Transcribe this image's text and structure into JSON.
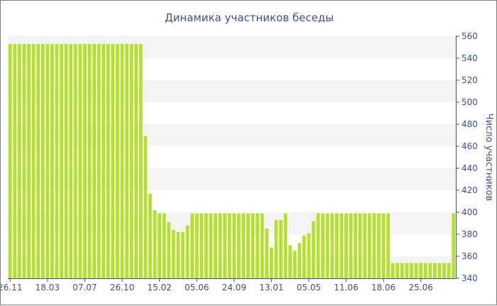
{
  "chart_data": {
    "type": "bar",
    "title": "Динамика участников беседы",
    "ylabel": "Число участников",
    "xlabel": "",
    "ylim": [
      340,
      560
    ],
    "yticks": [
      340,
      360,
      380,
      400,
      420,
      440,
      460,
      480,
      500,
      520,
      540,
      560
    ],
    "y_axis_side": "right",
    "grid": "alternating horizontal bands",
    "x_tick_labels": [
      {
        "label": "26.11",
        "index": 0
      },
      {
        "label": "18.03",
        "index": 8
      },
      {
        "label": "07.07",
        "index": 16
      },
      {
        "label": "26.10",
        "index": 24
      },
      {
        "label": "15.02",
        "index": 32
      },
      {
        "label": "05.06",
        "index": 40
      },
      {
        "label": "24.09",
        "index": 48
      },
      {
        "label": "13.01",
        "index": 56
      },
      {
        "label": "05.05",
        "index": 64
      },
      {
        "label": "11.06",
        "index": 72
      },
      {
        "label": "18.06",
        "index": 80
      },
      {
        "label": "25.06",
        "index": 88
      }
    ],
    "bar_color": "#b5e02e",
    "values": [
      553,
      553,
      553,
      553,
      553,
      553,
      553,
      553,
      553,
      553,
      553,
      553,
      553,
      553,
      553,
      553,
      553,
      553,
      553,
      553,
      553,
      553,
      553,
      553,
      553,
      553,
      553,
      553,
      553,
      469,
      417,
      402,
      399,
      399,
      391,
      384,
      382,
      382,
      388,
      399,
      399,
      399,
      399,
      399,
      399,
      399,
      399,
      399,
      399,
      399,
      399,
      399,
      399,
      399,
      399,
      385,
      368,
      393,
      393,
      399,
      370,
      365,
      372,
      379,
      381,
      392,
      399,
      399,
      399,
      399,
      399,
      399,
      399,
      399,
      399,
      399,
      399,
      399,
      399,
      399,
      399,
      399,
      354,
      354,
      354,
      354,
      354,
      354,
      354,
      354,
      354,
      354,
      354,
      354,
      354,
      399
    ]
  }
}
